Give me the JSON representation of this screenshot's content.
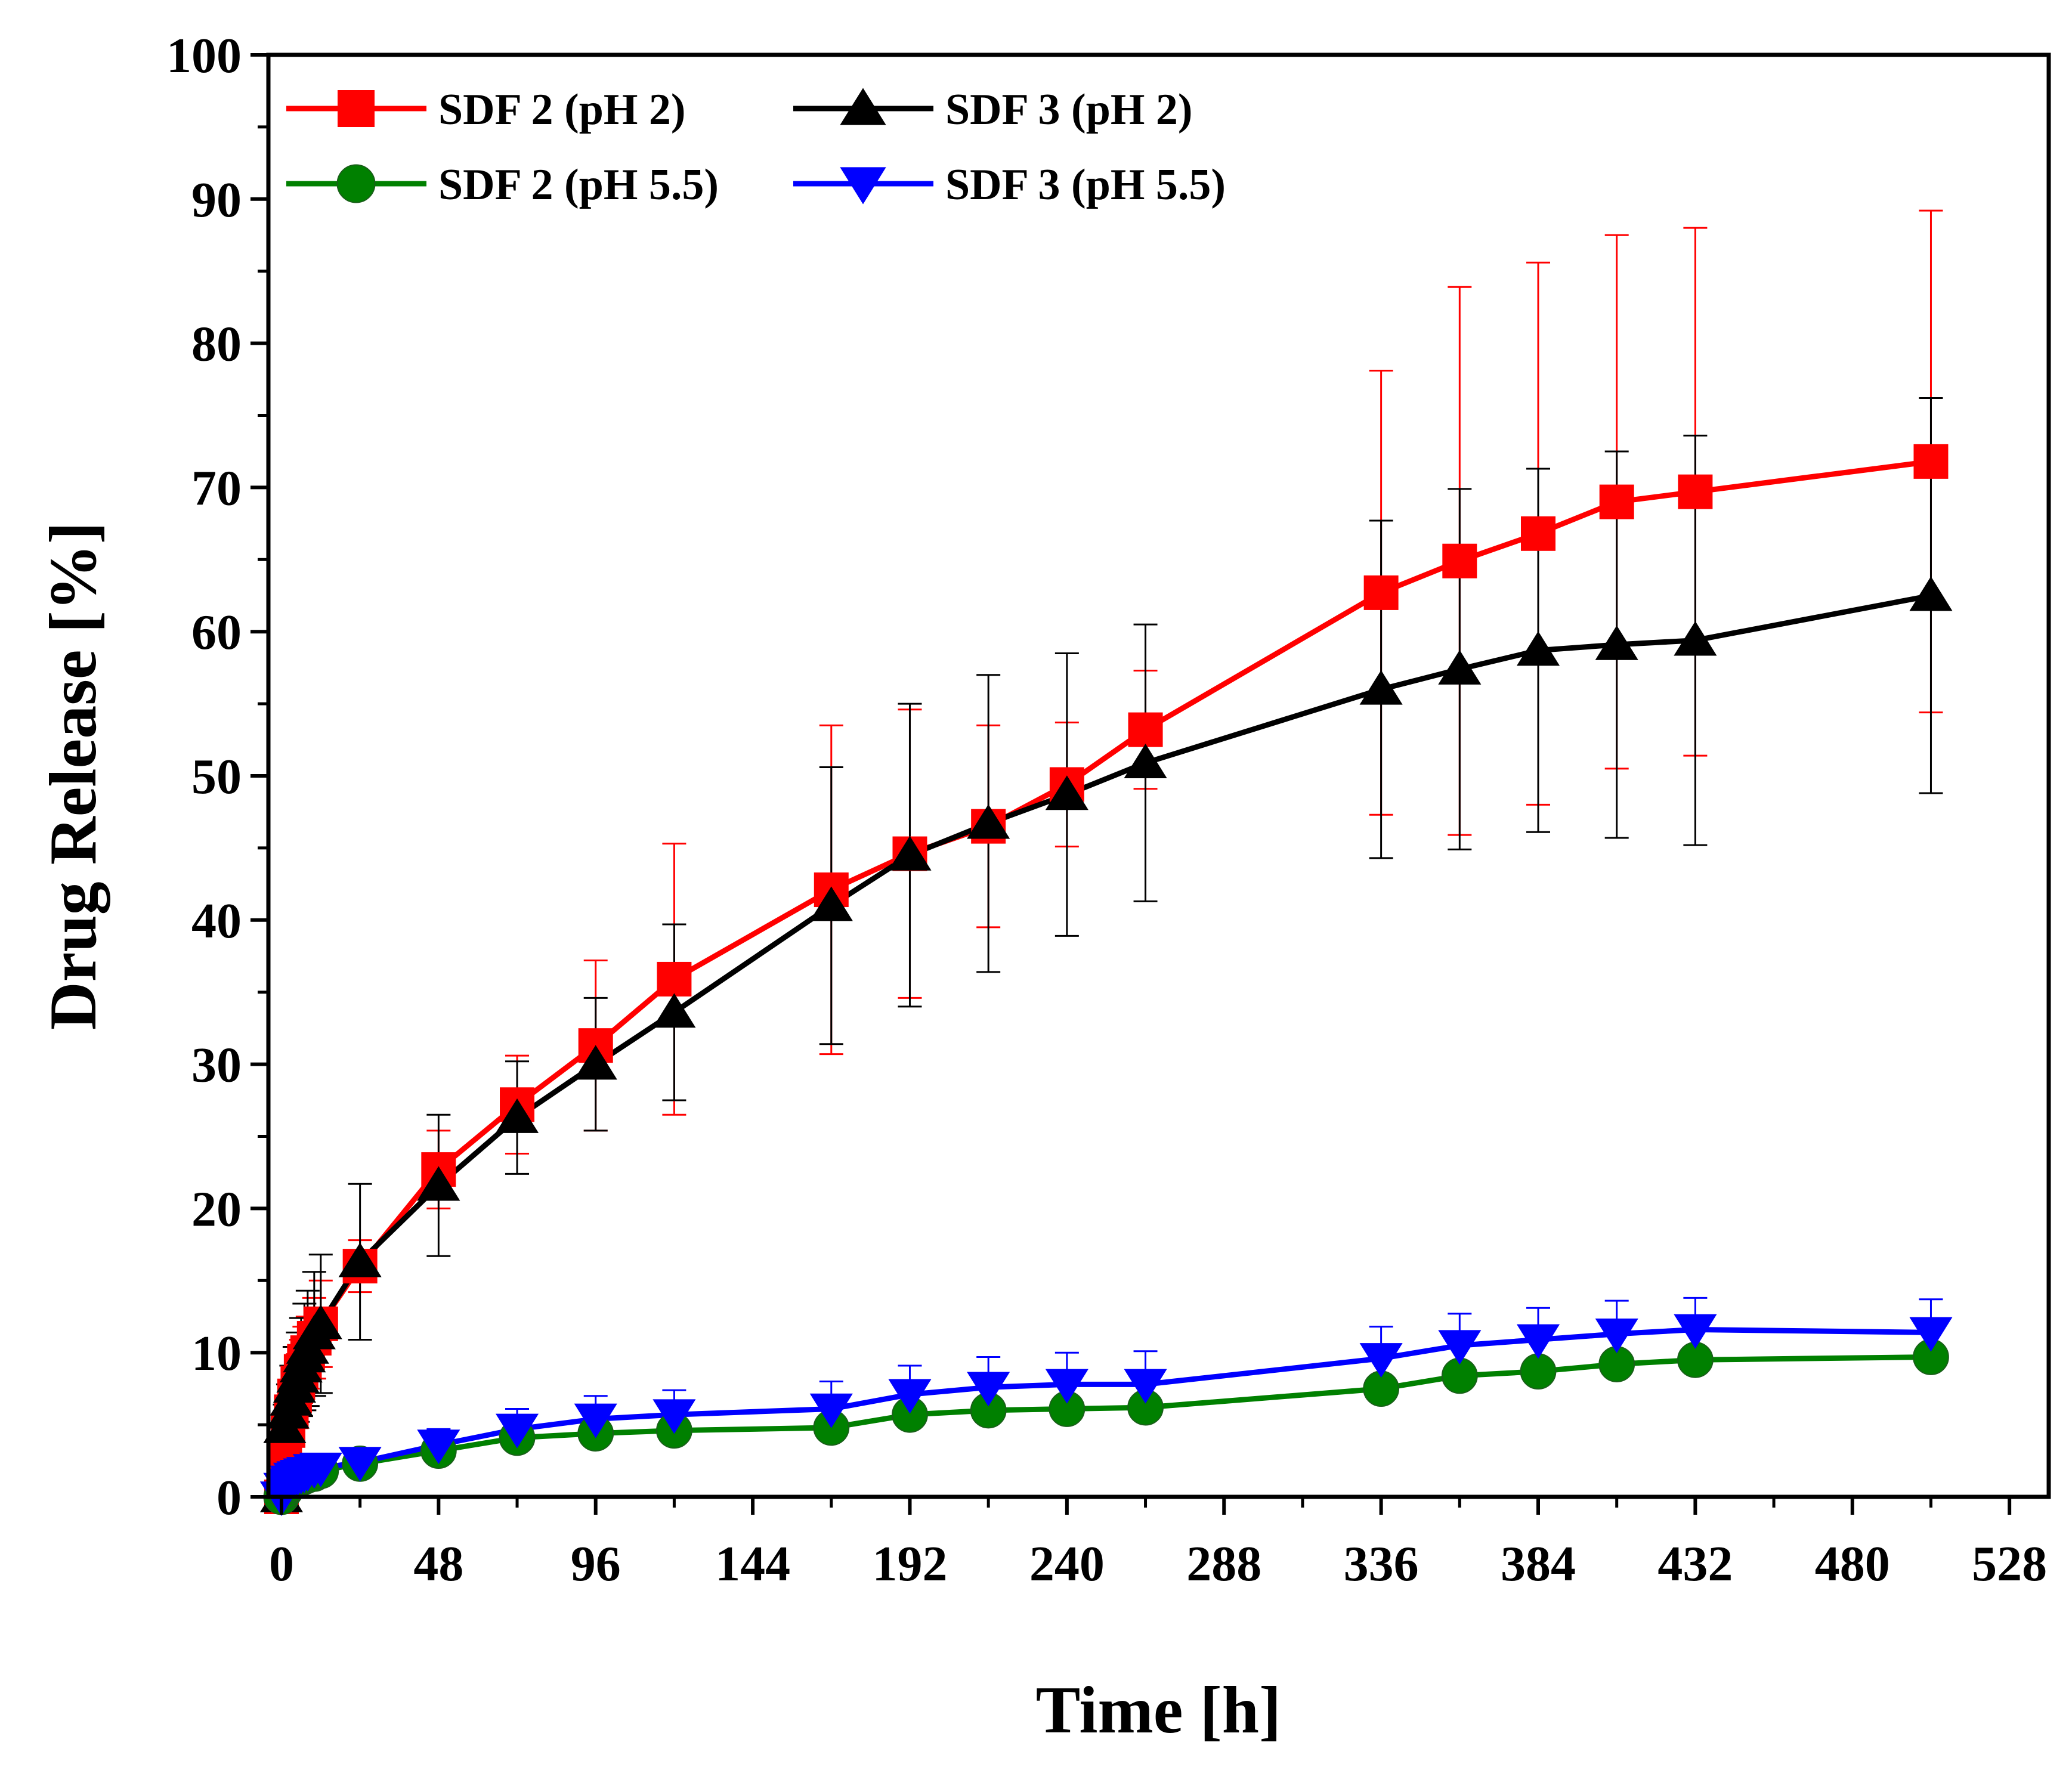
{
  "chart_data": {
    "type": "line",
    "title": "",
    "xlabel": "Time [h]",
    "ylabel": "Drug Release [%]",
    "xlim": [
      -4,
      540
    ],
    "ylim": [
      0,
      100
    ],
    "xticks": [
      0,
      48,
      96,
      144,
      192,
      240,
      288,
      336,
      384,
      432,
      480,
      528
    ],
    "yticks": [
      0,
      10,
      20,
      30,
      40,
      50,
      60,
      70,
      80,
      90,
      100
    ],
    "xtick_labels": [
      "0",
      "48",
      "96",
      "144",
      "192",
      "240",
      "288",
      "336",
      "384",
      "432",
      "480",
      "528"
    ],
    "ytick_labels": [
      "0",
      "10",
      "20",
      "30",
      "40",
      "50",
      "60",
      "70",
      "80",
      "90",
      "100"
    ],
    "grid": false,
    "legend_position": "top-left",
    "x": [
      0,
      1,
      2,
      3,
      4,
      5,
      6,
      7,
      8,
      10,
      12,
      24,
      48,
      72,
      96,
      120,
      168,
      192,
      216,
      240,
      264,
      336,
      360,
      384,
      408,
      432,
      504
    ],
    "series": [
      {
        "name": "SDF 2 (pH 2)",
        "color": "#ff0000",
        "marker": "square",
        "values": [
          0,
          3.0,
          4.6,
          5.9,
          7.0,
          7.9,
          8.7,
          9.4,
          10.0,
          11.0,
          12.0,
          16.0,
          22.7,
          27.2,
          31.3,
          35.9,
          42.1,
          44.6,
          46.5,
          49.4,
          53.2,
          62.7,
          64.9,
          66.8,
          69.0,
          69.7,
          71.8
        ],
        "errors": [
          0,
          0.8,
          1.2,
          1.5,
          1.8,
          2.0,
          2.2,
          2.4,
          2.5,
          2.8,
          3.0,
          1.8,
          2.7,
          3.4,
          5.9,
          9.4,
          11.4,
          10.0,
          7.0,
          4.3,
          4.1,
          15.4,
          19.0,
          18.8,
          18.5,
          18.3,
          17.4
        ]
      },
      {
        "name": "SDF 3 (pH 2)",
        "color": "#000000",
        "marker": "triangle-up",
        "values": [
          0,
          4.8,
          5.8,
          6.7,
          7.6,
          8.3,
          9.0,
          9.7,
          10.3,
          11.3,
          12.0,
          16.3,
          21.6,
          26.3,
          30.0,
          33.6,
          41.0,
          44.5,
          46.7,
          48.7,
          50.9,
          56.0,
          57.4,
          58.7,
          59.1,
          59.4,
          62.5
        ],
        "errors": [
          0,
          1.6,
          2.0,
          2.4,
          2.8,
          3.1,
          3.4,
          3.7,
          4.0,
          4.3,
          4.8,
          5.4,
          4.9,
          3.9,
          4.6,
          6.1,
          9.6,
          10.5,
          10.3,
          9.8,
          9.6,
          11.7,
          12.5,
          12.6,
          13.4,
          14.2,
          13.7
        ]
      },
      {
        "name": "SDF 2 (pH 5.5)",
        "color": "#008000",
        "marker": "circle",
        "values": [
          0,
          0.4,
          0.7,
          0.9,
          1.1,
          1.2,
          1.3,
          1.4,
          1.5,
          1.6,
          1.8,
          2.3,
          3.2,
          4.1,
          4.4,
          4.6,
          4.8,
          5.7,
          6.0,
          6.1,
          6.2,
          7.5,
          8.4,
          8.7,
          9.2,
          9.5,
          9.7
        ],
        "errors": [
          0,
          0.2,
          0.2,
          0.2,
          0.2,
          0.3,
          0.3,
          0.3,
          0.3,
          0.3,
          0.3,
          0.4,
          0.4,
          0.5,
          0.5,
          0.5,
          0.5,
          0.5,
          0.5,
          0.5,
          0.5,
          0.5,
          0.5,
          0.5,
          0.5,
          0.5,
          0.5
        ]
      },
      {
        "name": "SDF 3 (pH 5.5)",
        "color": "#0000ff",
        "marker": "triangle-down",
        "values": [
          0,
          0.6,
          0.9,
          1.1,
          1.3,
          1.4,
          1.5,
          1.6,
          1.7,
          1.9,
          2.0,
          2.4,
          3.6,
          4.7,
          5.4,
          5.7,
          6.1,
          7.1,
          7.6,
          7.8,
          7.8,
          9.6,
          10.5,
          10.9,
          11.3,
          11.6,
          11.4
        ],
        "errors": [
          0,
          0.3,
          0.4,
          0.4,
          0.5,
          0.5,
          0.5,
          0.6,
          0.6,
          0.6,
          0.7,
          0.9,
          1.1,
          1.4,
          1.6,
          1.7,
          1.9,
          2.0,
          2.1,
          2.2,
          2.3,
          2.2,
          2.2,
          2.2,
          2.3,
          2.2,
          2.3
        ]
      }
    ]
  }
}
